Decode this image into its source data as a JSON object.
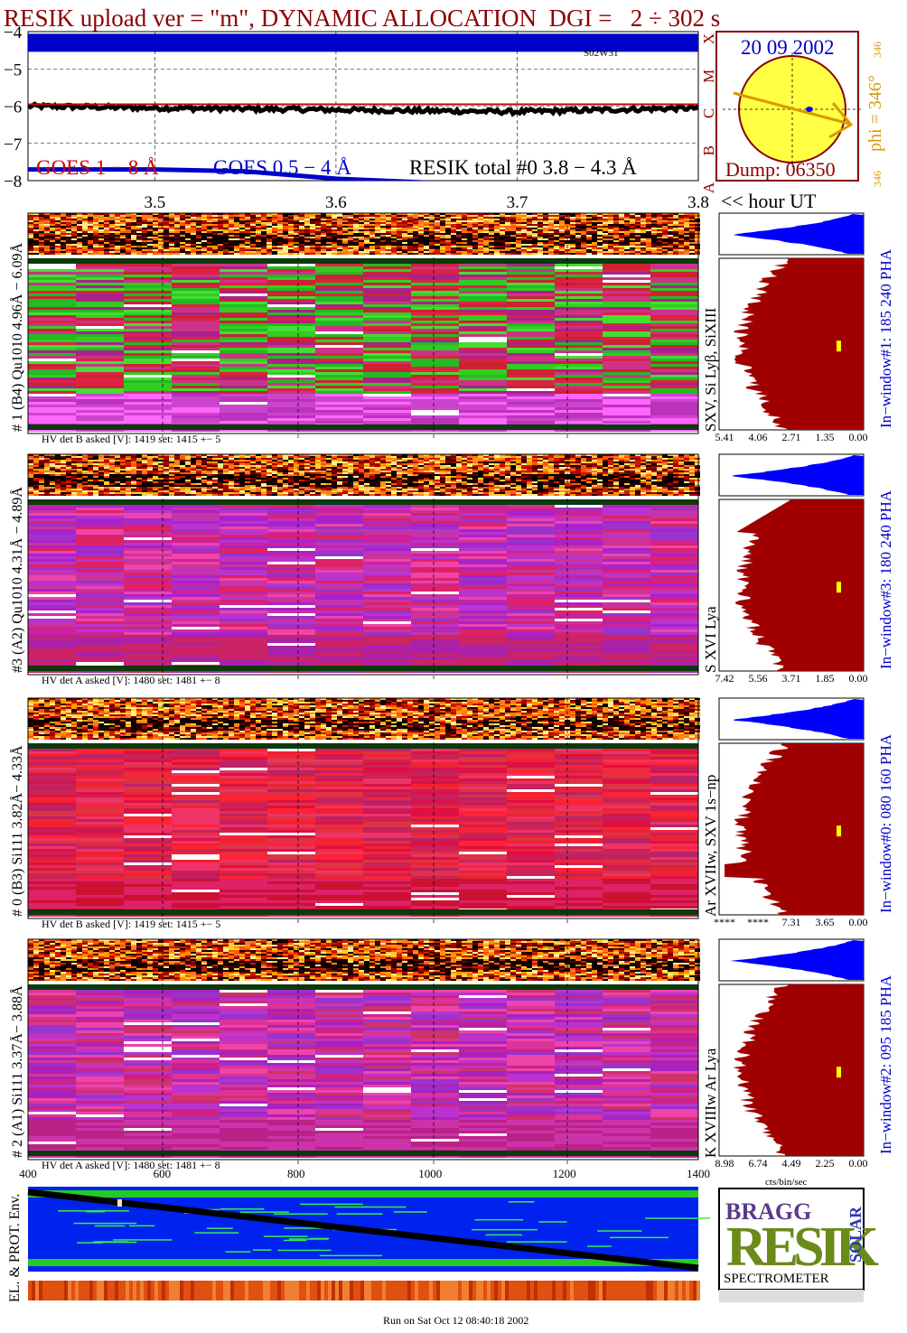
{
  "title": "RESIK upload ver = \"m\", DYNAMIC ALLOCATION  DGI =   2 ÷ 302 s",
  "footer": "Run on Sat Oct 12 08:40:18 2002",
  "colors": {
    "title": "#8b0000",
    "goes_short": "#0000cc",
    "goes_long": "#cc0000",
    "resik_total": "#000000",
    "histogram_fill": "#a00000",
    "histogram_blue": "#0000ff",
    "env_blue": "#0022ee",
    "env_green": "#22cc22"
  },
  "chart_data": [
    {
      "type": "line",
      "name": "goes_lightcurve",
      "ylim": [
        -8,
        -4
      ],
      "yticks": [
        "−4",
        "−5",
        "−6",
        "−7",
        "−8"
      ],
      "xlim": [
        3.43,
        3.8
      ],
      "xticks": [
        3.5,
        3.6,
        3.7,
        3.8
      ],
      "xlabel": "<< hour UT",
      "flare_classes": [
        "X",
        "M",
        "C",
        "B",
        "A"
      ],
      "marker_label": "S02W31",
      "legend": [
        "GOES 1 − 8 Å",
        "GOES 0.5 − 4 Å",
        "RESIK total #0  3.8 − 4.3 Å"
      ],
      "series": [
        {
          "name": "GOES 1 − 8 Å",
          "x": [
            3.43,
            3.5,
            3.6,
            3.7,
            3.8
          ],
          "y": [
            -4.3,
            -4.3,
            -4.3,
            -4.3,
            -4.3
          ]
        },
        {
          "name": "RESIK total #0  3.8 − 4.3 Å",
          "x": [
            3.43,
            3.5,
            3.6,
            3.7,
            3.8
          ],
          "y": [
            -6.0,
            -6.05,
            -6.1,
            -6.15,
            -6.05
          ]
        },
        {
          "name": "GOES 0.5 − 4 Å",
          "x": [
            3.43,
            3.5,
            3.55,
            3.6,
            3.65
          ],
          "y": [
            -7.7,
            -7.7,
            -7.75,
            -7.95,
            -8.05
          ]
        }
      ]
    },
    {
      "type": "scatter",
      "name": "sun_position",
      "date": "20 09 2002",
      "dump": "Dump: 06350",
      "phi_label": "phi = 346°",
      "phi_small": "346",
      "phi_bottom": "346",
      "phi": 346
    },
    {
      "type": "heatmap",
      "name": "spectrograms",
      "panels": [
        {
          "label": "# 1 (B4) Qu1010 4.96Å − 6.09Å",
          "line_label": "SXV, Si Lyβ, SiXIII",
          "hv_text": "HV det B asked [V]:  1419 set:  1415 +−    5",
          "window_label": "In−window#1:  185 240 PHA",
          "hist_ticks": [
            "5.41",
            "4.06",
            "2.71",
            "1.35",
            "0.00"
          ]
        },
        {
          "label": "#3 (A2) Qu1010  4.31Å − 4.89Å",
          "line_label": "S XVI Lya",
          "hv_text": "HV det A asked [V]:  1480 set:  1481 +−    8",
          "window_label": "In−window#3:  180 240 PHA",
          "hist_ticks": [
            "7.42",
            "5.56",
            "3.71",
            "1.85",
            "0.00"
          ]
        },
        {
          "label": "# 0 (B3) Si111  3.82Å− 4.33Å",
          "line_label": "Ar XVIIw,  SXV 1s−np",
          "hv_text": "HV det B asked [V]:  1419 set:  1415 +−    5",
          "window_label": "In−window#0:  080 160 PHA",
          "hist_ticks": [
            "****",
            "****",
            "7.31",
            "3.65",
            "0.00"
          ]
        },
        {
          "label": "# 2 (A1) Si111  3.37Å− 3.88Å",
          "line_label": "K XVIIIw  Ar Lya",
          "hv_text": "HV det A asked [V]:  1480 set:  1481 +−    8",
          "window_label": "In−window#2:  095 185 PHA",
          "hist_ticks": [
            "8.98",
            "6.74",
            "4.49",
            "2.25",
            "0.00"
          ]
        }
      ],
      "x_ticks": [
        "400",
        "600",
        "800",
        "1000",
        "1200",
        "1400"
      ],
      "hist_xlabel": "cts/bin/sec"
    },
    {
      "type": "heatmap",
      "name": "environment",
      "label": "EL. & PROT. Env."
    }
  ],
  "logo": {
    "text": "RESIK",
    "bragg": "BRAGG",
    "solar": "SOLAR",
    "spectrometer": "SPECTROMETER"
  }
}
